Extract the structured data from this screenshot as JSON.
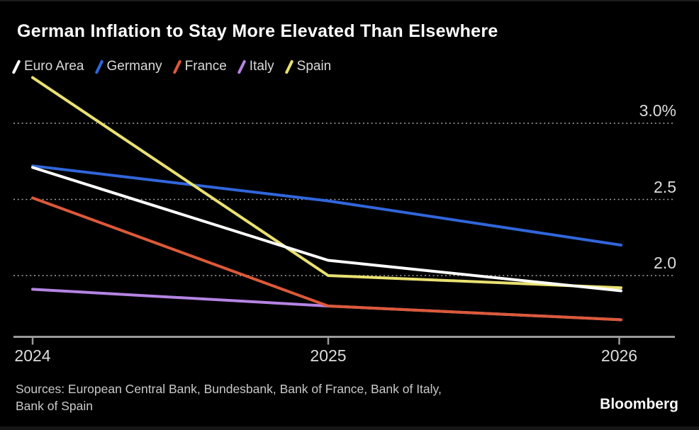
{
  "title": "German Inflation to Stay More Elevated Than Elsewhere",
  "legend": {
    "items": [
      {
        "label": "Euro Area",
        "color": "#ffffff"
      },
      {
        "label": "Germany",
        "color": "#3166db"
      },
      {
        "label": "France",
        "color": "#dc5939"
      },
      {
        "label": "Italy",
        "color": "#b584e3"
      },
      {
        "label": "Spain",
        "color": "#e9e170"
      }
    ]
  },
  "chart_data": {
    "type": "line",
    "title": "German Inflation to Stay More Elevated Than Elsewhere",
    "x": [
      2024,
      2025,
      2026
    ],
    "x_tick_labels": [
      "2024",
      "2025",
      "2026"
    ],
    "y_tick_labels": [
      "3.0%",
      "2.5",
      "2.0"
    ],
    "y_tick_values": [
      3.0,
      2.5,
      2.0
    ],
    "ylim": [
      1.55,
      3.35
    ],
    "unit": "percent",
    "grid": "horizontal-dotted",
    "legend_position": "top",
    "series": [
      {
        "name": "Euro Area",
        "color": "#ffffff",
        "values": [
          2.71,
          2.1,
          1.9
        ]
      },
      {
        "name": "Germany",
        "color": "#3166db",
        "values": [
          2.72,
          2.49,
          2.2
        ]
      },
      {
        "name": "France",
        "color": "#dc5939",
        "values": [
          2.51,
          1.8,
          1.71
        ]
      },
      {
        "name": "Italy",
        "color": "#b584e3",
        "values": [
          1.91,
          1.8,
          1.71
        ]
      },
      {
        "name": "Spain",
        "color": "#e9e170",
        "values": [
          3.3,
          2.0,
          1.92
        ]
      }
    ],
    "draw_order": [
      "Italy",
      "France",
      "Germany",
      "Spain",
      "Euro Area"
    ],
    "note": "Italy overlaps France from 2025 onward"
  },
  "axis_colors": {
    "axis_line": "#9a9a9a",
    "gridline": "#cfcfcf"
  },
  "source": {
    "line1": "Sources: European Central Bank, Bundesbank, Bank of France, Bank of Italy,",
    "line2": "Bank of Spain"
  },
  "brand": "Bloomberg"
}
